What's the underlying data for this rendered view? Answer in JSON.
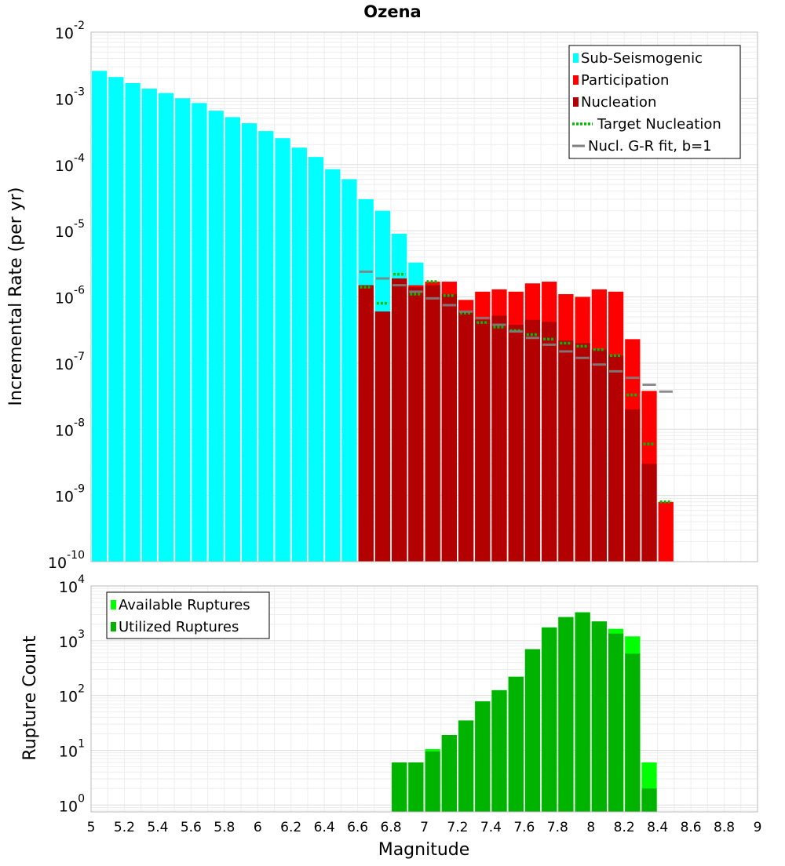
{
  "chart_data": [
    {
      "type": "bar",
      "title": "Ozena",
      "xlabel": "Magnitude",
      "ylabel": "Incremental Rate (per yr)",
      "xlim": [
        5,
        9
      ],
      "ylim": [
        1e-10,
        0.01
      ],
      "y_scale": "log",
      "grid": true,
      "legend_position": "top-right",
      "y_ticks": [
        {
          "base": "10",
          "exp": "-10",
          "value": 1e-10
        },
        {
          "base": "10",
          "exp": "-9",
          "value": 1e-09
        },
        {
          "base": "10",
          "exp": "-8",
          "value": 1e-08
        },
        {
          "base": "10",
          "exp": "-7",
          "value": 1e-07
        },
        {
          "base": "10",
          "exp": "-6",
          "value": 1e-06
        },
        {
          "base": "10",
          "exp": "-5",
          "value": 1e-05
        },
        {
          "base": "10",
          "exp": "-4",
          "value": 0.0001
        },
        {
          "base": "10",
          "exp": "-3",
          "value": 0.001
        },
        {
          "base": "10",
          "exp": "-2",
          "value": 0.01
        }
      ],
      "series": [
        {
          "name": "Sub-Seismogenic",
          "color": "#00ffff",
          "style": "bar",
          "x": [
            5.05,
            5.15,
            5.25,
            5.35,
            5.45,
            5.55,
            5.65,
            5.75,
            5.85,
            5.95,
            6.05,
            6.15,
            6.25,
            6.35,
            6.45,
            6.55,
            6.65,
            6.75,
            6.85,
            6.95
          ],
          "values": [
            0.0026,
            0.0021,
            0.0017,
            0.0014,
            0.0012,
            0.001,
            0.00085,
            0.00065,
            0.00052,
            0.00042,
            0.00032,
            0.00025,
            0.00018,
            0.00013,
            8.5e-05,
            6e-05,
            3e-05,
            2e-05,
            9e-06,
            3.3e-06
          ]
        },
        {
          "name": "Participation",
          "color": "#ff0000",
          "style": "bar",
          "x": [
            6.65,
            6.75,
            6.85,
            6.95,
            7.05,
            7.15,
            7.25,
            7.35,
            7.45,
            7.55,
            7.65,
            7.75,
            7.85,
            7.95,
            8.05,
            8.15,
            8.25,
            8.35,
            8.45
          ],
          "values": [
            1.5e-06,
            6e-07,
            1.9e-06,
            1.5e-06,
            1.7e-06,
            1.7e-06,
            9e-07,
            1.2e-06,
            1.3e-06,
            1.2e-06,
            1.6e-06,
            1.7e-06,
            1.1e-06,
            1e-06,
            1.3e-06,
            1.2e-06,
            2.3e-07,
            3.8e-08,
            8e-10
          ]
        },
        {
          "name": "Nucleation",
          "color": "#b30000",
          "style": "bar",
          "x": [
            6.65,
            6.75,
            6.85,
            6.95,
            7.05,
            7.15,
            7.25,
            7.35,
            7.45,
            7.55,
            7.65,
            7.75,
            7.85,
            7.95,
            8.05,
            8.15,
            8.25,
            8.35
          ],
          "values": [
            1.5e-06,
            6e-07,
            1.9e-06,
            1.4e-06,
            1.5e-06,
            1.1e-06,
            6e-07,
            4.5e-07,
            5.2e-07,
            3.8e-07,
            4.5e-07,
            4.2e-07,
            2.2e-07,
            2e-07,
            1.6e-07,
            1.3e-07,
            2e-08,
            3e-09
          ]
        },
        {
          "name": "Target Nucleation",
          "color": "#00bb00",
          "style": "dotted-segment",
          "x": [
            6.65,
            6.75,
            6.85,
            6.95,
            7.05,
            7.15,
            7.25,
            7.35,
            7.45,
            7.55,
            7.65,
            7.75,
            7.85,
            7.95,
            8.05,
            8.15,
            8.25,
            8.35,
            8.45
          ],
          "values": [
            1.4e-06,
            8e-07,
            2.2e-06,
            1.1e-06,
            1.7e-06,
            1.05e-06,
            5.7e-07,
            4.1e-07,
            3.5e-07,
            3.1e-07,
            2.7e-07,
            2.3e-07,
            2e-07,
            1.8e-07,
            1.6e-07,
            1.3e-07,
            3.3e-08,
            6e-09,
            8e-10
          ]
        },
        {
          "name": "Nucl. G-R fit, b=1",
          "color": "#808080",
          "style": "segment",
          "x": [
            6.65,
            6.75,
            6.85,
            6.95,
            7.05,
            7.15,
            7.25,
            7.35,
            7.45,
            7.55,
            7.65,
            7.75,
            7.85,
            7.95,
            8.05,
            8.15,
            8.25,
            8.35,
            8.45
          ],
          "values": [
            2.4e-06,
            1.9e-06,
            1.5e-06,
            1.2e-06,
            9.5e-07,
            7.5e-07,
            6e-07,
            4.8e-07,
            3.8e-07,
            3e-07,
            2.4e-07,
            1.9e-07,
            1.5e-07,
            1.2e-07,
            9.5e-08,
            7.5e-08,
            6e-08,
            4.7e-08,
            3.7e-08
          ]
        }
      ]
    },
    {
      "type": "bar",
      "title": "",
      "xlabel": "Magnitude",
      "ylabel": "Rupture Count",
      "xlim": [
        5,
        9
      ],
      "ylim": [
        0.75,
        10000
      ],
      "y_scale": "log",
      "grid": true,
      "legend_position": "top-left",
      "y_ticks": [
        {
          "base": "10",
          "exp": "0",
          "value": 1
        },
        {
          "base": "10",
          "exp": "1",
          "value": 10
        },
        {
          "base": "10",
          "exp": "2",
          "value": 100
        },
        {
          "base": "10",
          "exp": "3",
          "value": 1000
        },
        {
          "base": "10",
          "exp": "4",
          "value": 10000
        }
      ],
      "x_ticks": [
        "5",
        "5.2",
        "5.4",
        "5.6",
        "5.8",
        "6",
        "6.2",
        "6.4",
        "6.6",
        "6.8",
        "7",
        "7.2",
        "7.4",
        "7.6",
        "7.8",
        "8",
        "8.2",
        "8.4",
        "8.6",
        "8.8",
        "9"
      ],
      "series": [
        {
          "name": "Available Ruptures",
          "color": "#00ff00",
          "style": "bar",
          "x": [
            6.85,
            6.95,
            7.05,
            7.15,
            7.25,
            7.35,
            7.45,
            7.55,
            7.65,
            7.75,
            7.85,
            7.95,
            8.05,
            8.15,
            8.25,
            8.35
          ],
          "values": [
            6,
            6,
            10.5,
            19,
            35,
            78,
            125,
            220,
            700,
            1750,
            2700,
            3300,
            2250,
            1650,
            1200,
            6
          ]
        },
        {
          "name": "Utilized Ruptures",
          "color": "#00b300",
          "style": "bar",
          "x": [
            6.85,
            6.95,
            7.05,
            7.15,
            7.25,
            7.35,
            7.45,
            7.55,
            7.65,
            7.75,
            7.85,
            7.95,
            8.05,
            8.15,
            8.25,
            8.35
          ],
          "values": [
            6,
            6,
            9.5,
            19,
            35,
            78,
            125,
            220,
            700,
            1750,
            2700,
            3300,
            2250,
            1350,
            580,
            2
          ]
        }
      ]
    }
  ]
}
